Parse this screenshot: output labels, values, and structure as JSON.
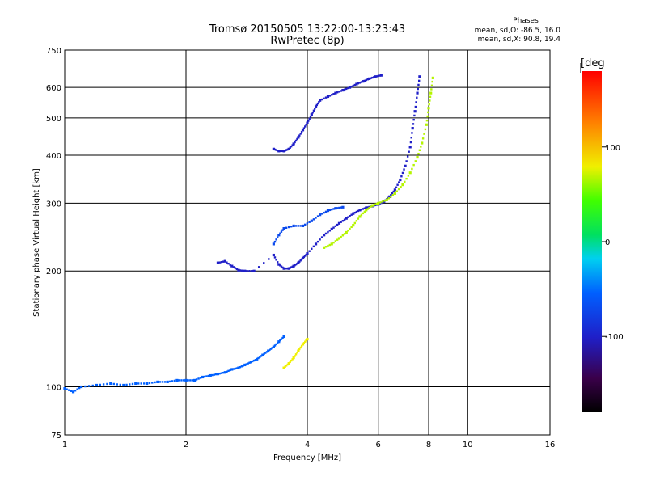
{
  "chart_data": {
    "type": "scatter",
    "title": "Tromsø 20150505 13:22:00-13:23:43",
    "subtitle": "RwPretec (8p)",
    "phase_box": {
      "heading": "Phases",
      "line_o": "mean, sd,O: -86.5, 16.0",
      "line_x": "mean, sd,X:  90.8, 19.4"
    },
    "xlabel": "Frequency [MHz]",
    "ylabel": "Stationary phase Virtual Height [km]",
    "x_scale": "log",
    "y_scale": "log",
    "xlim": [
      1,
      16
    ],
    "ylim": [
      75,
      750
    ],
    "xticks": [
      1,
      2,
      4,
      6,
      8,
      10,
      16
    ],
    "xgrid": [
      2,
      4,
      6,
      8,
      10
    ],
    "yticks": [
      75,
      100,
      200,
      300,
      400,
      500,
      600,
      750
    ],
    "ygrid": [
      100,
      200,
      300,
      400,
      500,
      600
    ],
    "colorbar": {
      "label": "[deg",
      "range": [
        -180,
        180
      ],
      "ticks": [
        100,
        0,
        -100
      ]
    },
    "series": [
      {
        "trace": "e-layer",
        "color_phase": -80,
        "points": [
          [
            1.0,
            99
          ],
          [
            1.05,
            97
          ],
          [
            1.1,
            100
          ],
          [
            1.2,
            101
          ],
          [
            1.3,
            102
          ],
          [
            1.4,
            101
          ],
          [
            1.5,
            102
          ],
          [
            1.6,
            102
          ],
          [
            1.7,
            103
          ],
          [
            1.8,
            103
          ],
          [
            1.9,
            104
          ],
          [
            2.0,
            104
          ],
          [
            2.1,
            104
          ],
          [
            2.2,
            106
          ],
          [
            2.3,
            107
          ],
          [
            2.4,
            108
          ],
          [
            2.5,
            109
          ],
          [
            2.6,
            111
          ],
          [
            2.7,
            112
          ],
          [
            2.8,
            114
          ],
          [
            2.9,
            116
          ],
          [
            3.0,
            118
          ],
          [
            3.1,
            121
          ],
          [
            3.2,
            124
          ],
          [
            3.3,
            127
          ],
          [
            3.4,
            131
          ],
          [
            3.5,
            135
          ]
        ]
      },
      {
        "trace": "e-layer-x",
        "color_phase": 100,
        "points": [
          [
            3.5,
            112
          ],
          [
            3.6,
            115
          ],
          [
            3.7,
            119
          ],
          [
            3.8,
            124
          ],
          [
            3.9,
            129
          ],
          [
            4.0,
            133
          ]
        ]
      },
      {
        "trace": "f-low-o",
        "color_phase": -110,
        "points": [
          [
            2.4,
            210
          ],
          [
            2.5,
            212
          ],
          [
            2.6,
            206
          ],
          [
            2.7,
            201
          ],
          [
            2.8,
            200
          ],
          [
            2.95,
            200
          ],
          [
            3.3,
            220
          ],
          [
            3.4,
            208
          ],
          [
            3.5,
            203
          ],
          [
            3.6,
            203
          ],
          [
            3.7,
            206
          ],
          [
            3.8,
            210
          ],
          [
            3.9,
            216
          ],
          [
            4.0,
            222
          ],
          [
            4.2,
            235
          ],
          [
            4.4,
            248
          ],
          [
            4.6,
            257
          ],
          [
            4.8,
            266
          ],
          [
            5.0,
            274
          ],
          [
            5.2,
            282
          ],
          [
            5.4,
            288
          ],
          [
            5.6,
            292
          ],
          [
            5.8,
            295
          ],
          [
            6.0,
            298
          ],
          [
            6.2,
            303
          ],
          [
            6.4,
            312
          ],
          [
            6.6,
            325
          ],
          [
            6.8,
            345
          ],
          [
            7.0,
            375
          ],
          [
            7.2,
            420
          ],
          [
            7.3,
            470
          ],
          [
            7.4,
            520
          ],
          [
            7.5,
            580
          ],
          [
            7.6,
            640
          ]
        ]
      },
      {
        "trace": "f-low-o-upper",
        "color_phase": -90,
        "points": [
          [
            3.3,
            235
          ],
          [
            3.4,
            248
          ],
          [
            3.5,
            258
          ],
          [
            3.7,
            262
          ],
          [
            3.9,
            262
          ],
          [
            4.1,
            270
          ],
          [
            4.3,
            280
          ],
          [
            4.5,
            287
          ],
          [
            4.7,
            291
          ],
          [
            4.9,
            293
          ]
        ]
      },
      {
        "trace": "f-x",
        "color_phase": 80,
        "points": [
          [
            4.4,
            230
          ],
          [
            4.6,
            235
          ],
          [
            4.8,
            243
          ],
          [
            5.0,
            252
          ],
          [
            5.2,
            263
          ],
          [
            5.4,
            277
          ],
          [
            5.6,
            288
          ],
          [
            5.8,
            296
          ],
          [
            6.0,
            300
          ],
          [
            6.3,
            306
          ],
          [
            6.6,
            318
          ],
          [
            6.9,
            335
          ],
          [
            7.2,
            360
          ],
          [
            7.5,
            395
          ],
          [
            7.7,
            430
          ],
          [
            7.9,
            480
          ],
          [
            8.0,
            530
          ],
          [
            8.1,
            580
          ],
          [
            8.2,
            635
          ]
        ]
      },
      {
        "trace": "f-high",
        "color_phase": -110,
        "points": [
          [
            3.3,
            415
          ],
          [
            3.4,
            410
          ],
          [
            3.5,
            410
          ],
          [
            3.6,
            415
          ],
          [
            3.7,
            428
          ],
          [
            3.8,
            445
          ],
          [
            3.9,
            465
          ],
          [
            4.0,
            485
          ],
          [
            4.1,
            510
          ],
          [
            4.2,
            535
          ],
          [
            4.3,
            555
          ],
          [
            4.5,
            568
          ],
          [
            4.7,
            580
          ],
          [
            4.9,
            590
          ],
          [
            5.1,
            600
          ],
          [
            5.3,
            612
          ],
          [
            5.5,
            622
          ],
          [
            5.7,
            632
          ],
          [
            5.9,
            640
          ],
          [
            6.1,
            645
          ]
        ]
      }
    ]
  }
}
